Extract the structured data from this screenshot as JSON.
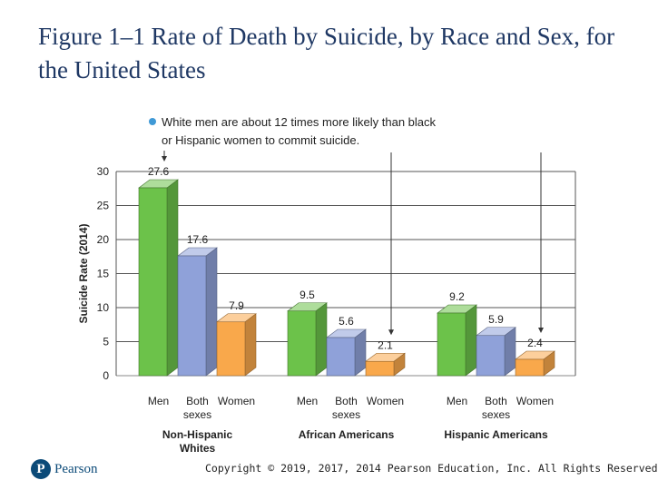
{
  "slide": {
    "title": "Figure 1–1 Rate of Death by Suicide, by Race and Sex, for the United States",
    "copyright": "Copyright © 2019, 2017, 2014 Pearson Education, Inc. All Rights Reserved",
    "logo_text": "Pearson",
    "logo_mark": "P"
  },
  "colors": {
    "men": "#6cc24a",
    "both": "#8fa1d9",
    "women": "#f9a84b",
    "note_bullet": "#3f99d6"
  },
  "chart_data": {
    "type": "bar",
    "title": "",
    "ylabel": "Suicide Rate (2014)",
    "ylim": [
      0,
      30
    ],
    "yticks": [
      0,
      5,
      10,
      15,
      20,
      25,
      30
    ],
    "note": "White men are about 12 times more likely than black or Hispanic women to commit suicide.",
    "groups": [
      {
        "name": "Non-Hispanic Whites",
        "bars": [
          {
            "label": "Men",
            "value": 27.6,
            "display": "27.6",
            "series": "men"
          },
          {
            "label": "Both sexes",
            "value": 17.6,
            "display": "17.6",
            "series": "both"
          },
          {
            "label": "Women",
            "value": 7.9,
            "display": "7.9",
            "series": "women"
          }
        ]
      },
      {
        "name": "African Americans",
        "bars": [
          {
            "label": "Men",
            "value": 9.5,
            "display": "9.5",
            "series": "men"
          },
          {
            "label": "Both sexes",
            "value": 5.6,
            "display": "5.6",
            "series": "both"
          },
          {
            "label": "Women",
            "value": 2.1,
            "display": "2.1",
            "series": "women"
          }
        ]
      },
      {
        "name": "Hispanic Americans",
        "bars": [
          {
            "label": "Men",
            "value": 9.2,
            "display": "9.2",
            "series": "men"
          },
          {
            "label": "Both sexes",
            "value": 5.9,
            "display": "5.9",
            "series": "both"
          },
          {
            "label": "Women",
            "value": 2.4,
            "display": "2.4",
            "series": "women"
          }
        ]
      }
    ]
  }
}
